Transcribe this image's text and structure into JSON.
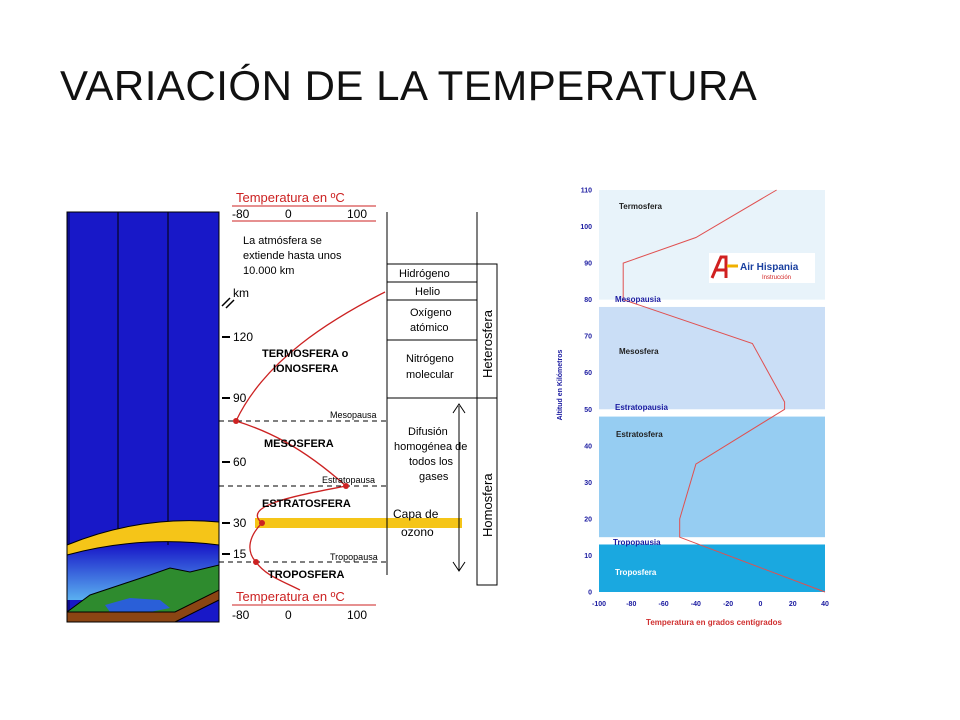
{
  "slide": {
    "title": "VARIACIÓN DE LA TEMPERATURA"
  },
  "left_diagram": {
    "temp_header_top": "Temperatura en ºC",
    "temp_ticks_top": [
      "-80",
      "0",
      "100"
    ],
    "temp_header_bottom": "Temperatura en ºC",
    "temp_ticks_bottom": [
      "-80",
      "0",
      "100"
    ],
    "note_lines": [
      "La atmósfera se",
      "extiende hasta unos",
      "10.000 km"
    ],
    "km_label": "km",
    "altitude_ticks": [
      "120",
      "90",
      "60",
      "30",
      "15"
    ],
    "layer_names": [
      "TERMOSFERA o",
      "IONOSFERA",
      "MESOSFERA",
      "ESTRATOSFERA",
      "TROPOSFERA"
    ],
    "boundary_names": [
      "Mesopausa",
      "Estratopausa",
      "Tropopausa"
    ],
    "ozone_lines": [
      "Capa de",
      "ozono"
    ],
    "composition_boxes": {
      "hydrogen": "Hidrógeno",
      "helium": "Helio",
      "oxygen_lines": [
        "Oxígeno",
        "atómico"
      ],
      "nitrogen_lines": [
        "Nitrógeno",
        "molecular"
      ],
      "diffusion_lines": [
        "Difusión",
        "homogénea de",
        "todos los",
        "gases"
      ]
    },
    "heterosphere": "Heterosfera",
    "homosphere": "Homosfera",
    "colors": {
      "sky": "#1414c8",
      "ozone": "#f5c518",
      "curve": "#cc2222",
      "ground": "#8b4513"
    }
  },
  "right_chart": {
    "y_axis_label": "Altitud en Kilómetros",
    "x_axis_label": "Temperatura en grados centígrados",
    "y_ticks": [
      "0",
      "10",
      "20",
      "30",
      "40",
      "50",
      "60",
      "70",
      "80",
      "90",
      "100",
      "110"
    ],
    "x_ticks": [
      "-100",
      "-80",
      "-60",
      "-40",
      "-20",
      "0",
      "20",
      "40"
    ],
    "layer_labels": [
      "Termosfera",
      "Mesopausia",
      "Mesosfera",
      "Estratopausia",
      "Estratosfera",
      "Tropopausia",
      "Troposfera"
    ],
    "logo": {
      "line1": "Air Hispania",
      "line2": "Instrucción"
    },
    "colors": {
      "thermo": "#e8f3fa",
      "meso": "#cadef6",
      "strato": "#96cdf2",
      "tropo": "#1aa8e0",
      "curve": "#e05050",
      "label_blue": "#1a1aa0"
    }
  },
  "chart_data": {
    "type": "line",
    "title": "",
    "xlabel": "Temperatura en grados centígrados",
    "ylabel": "Altitud en Kilómetros",
    "xlim": [
      -100,
      40
    ],
    "ylim": [
      0,
      110
    ],
    "series": [
      {
        "points": [
          [
            40,
            0
          ],
          [
            -50,
            15
          ],
          [
            -50,
            20
          ],
          [
            -40,
            35
          ],
          [
            15,
            50
          ],
          [
            15,
            52
          ],
          [
            -5,
            68
          ],
          [
            -85,
            80
          ],
          [
            -85,
            90
          ],
          [
            -40,
            97
          ],
          [
            10,
            110
          ]
        ]
      }
    ]
  }
}
